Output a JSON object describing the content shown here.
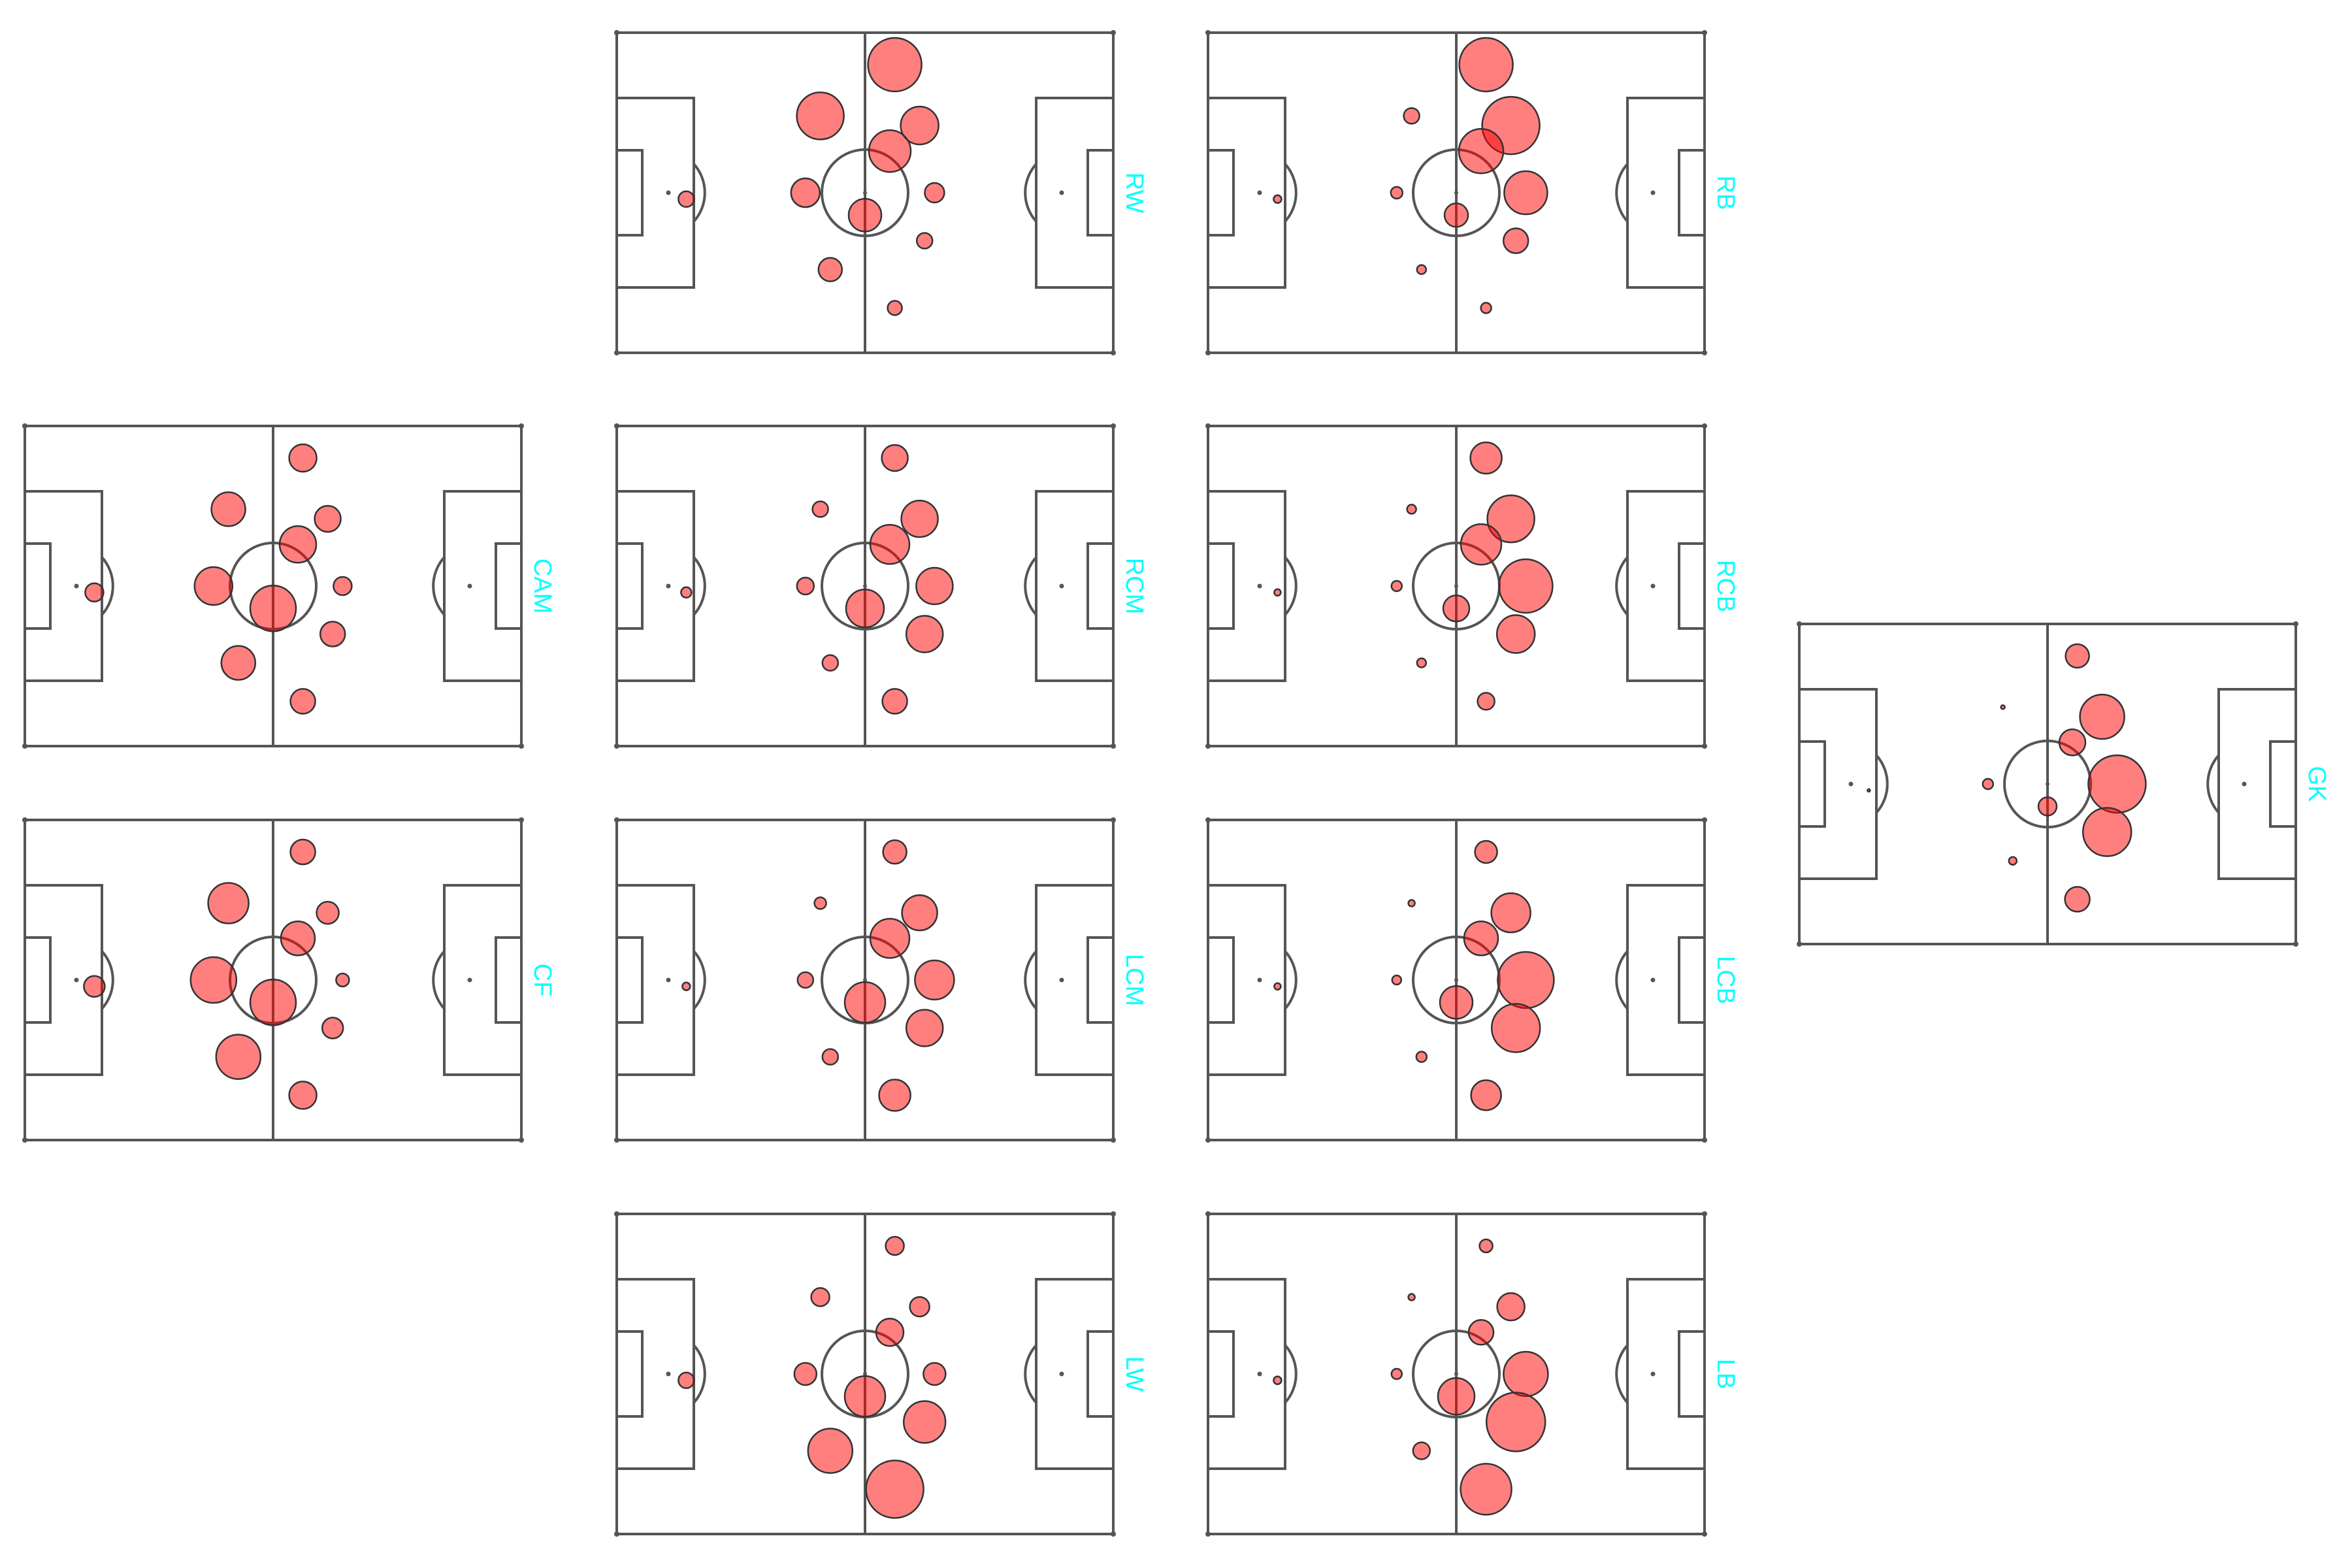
{
  "colors": {
    "line": "#555555",
    "bubble_fill": "#ff0000",
    "bubble_opacity": 0.5,
    "bubble_stroke": "#333333",
    "label": "#00ffff",
    "background": "#ffffff"
  },
  "pitches": [
    {
      "label": "RW",
      "bubbles": [
        [
          0.56,
          0.1,
          41
        ],
        [
          0.41,
          0.26,
          36
        ],
        [
          0.61,
          0.29,
          29
        ],
        [
          0.55,
          0.37,
          32
        ],
        [
          0.38,
          0.5,
          22
        ],
        [
          0.64,
          0.5,
          15
        ],
        [
          0.14,
          0.52,
          12
        ],
        [
          0.5,
          0.57,
          25
        ],
        [
          0.62,
          0.65,
          12
        ],
        [
          0.43,
          0.74,
          18
        ],
        [
          0.56,
          0.86,
          11
        ]
      ]
    },
    {
      "label": "RB",
      "bubbles": [
        [
          0.56,
          0.1,
          41
        ],
        [
          0.41,
          0.26,
          12
        ],
        [
          0.61,
          0.29,
          44
        ],
        [
          0.55,
          0.37,
          34
        ],
        [
          0.38,
          0.5,
          9
        ],
        [
          0.64,
          0.5,
          33
        ],
        [
          0.14,
          0.52,
          6
        ],
        [
          0.5,
          0.57,
          18
        ],
        [
          0.62,
          0.65,
          19
        ],
        [
          0.43,
          0.74,
          7
        ],
        [
          0.56,
          0.86,
          8
        ]
      ]
    },
    {
      "label": "CAM",
      "bubbles": [
        [
          0.56,
          0.1,
          21
        ],
        [
          0.41,
          0.26,
          26
        ],
        [
          0.61,
          0.29,
          20
        ],
        [
          0.55,
          0.37,
          28
        ],
        [
          0.38,
          0.5,
          29
        ],
        [
          0.64,
          0.5,
          14
        ],
        [
          0.14,
          0.52,
          14
        ],
        [
          0.5,
          0.57,
          35
        ],
        [
          0.62,
          0.65,
          19
        ],
        [
          0.43,
          0.74,
          26
        ],
        [
          0.56,
          0.86,
          19
        ]
      ]
    },
    {
      "label": "RCM",
      "bubbles": [
        [
          0.56,
          0.1,
          20
        ],
        [
          0.41,
          0.26,
          12
        ],
        [
          0.61,
          0.29,
          28
        ],
        [
          0.55,
          0.37,
          30
        ],
        [
          0.38,
          0.5,
          13
        ],
        [
          0.64,
          0.5,
          28
        ],
        [
          0.14,
          0.52,
          8
        ],
        [
          0.5,
          0.57,
          29
        ],
        [
          0.62,
          0.65,
          28
        ],
        [
          0.43,
          0.74,
          12
        ],
        [
          0.56,
          0.86,
          19
        ]
      ]
    },
    {
      "label": "RCB",
      "bubbles": [
        [
          0.56,
          0.1,
          24
        ],
        [
          0.41,
          0.26,
          7
        ],
        [
          0.61,
          0.29,
          36
        ],
        [
          0.55,
          0.37,
          31
        ],
        [
          0.38,
          0.5,
          8
        ],
        [
          0.64,
          0.5,
          41
        ],
        [
          0.14,
          0.52,
          5
        ],
        [
          0.5,
          0.57,
          20
        ],
        [
          0.62,
          0.65,
          29
        ],
        [
          0.43,
          0.74,
          7
        ],
        [
          0.56,
          0.86,
          13
        ]
      ]
    },
    {
      "label": "GK",
      "bubbles": [
        [
          0.56,
          0.1,
          18
        ],
        [
          0.41,
          0.26,
          3
        ],
        [
          0.61,
          0.29,
          34
        ],
        [
          0.55,
          0.37,
          20
        ],
        [
          0.38,
          0.5,
          8
        ],
        [
          0.64,
          0.5,
          44
        ],
        [
          0.14,
          0.52,
          2
        ],
        [
          0.5,
          0.57,
          14
        ],
        [
          0.62,
          0.65,
          37
        ],
        [
          0.43,
          0.74,
          6
        ],
        [
          0.56,
          0.86,
          19
        ]
      ]
    },
    {
      "label": "CF",
      "bubbles": [
        [
          0.56,
          0.1,
          19
        ],
        [
          0.41,
          0.26,
          31
        ],
        [
          0.61,
          0.29,
          17
        ],
        [
          0.55,
          0.37,
          26
        ],
        [
          0.38,
          0.5,
          35
        ],
        [
          0.64,
          0.5,
          10
        ],
        [
          0.14,
          0.52,
          16
        ],
        [
          0.5,
          0.57,
          35
        ],
        [
          0.62,
          0.65,
          16
        ],
        [
          0.43,
          0.74,
          34
        ],
        [
          0.56,
          0.86,
          21
        ]
      ]
    },
    {
      "label": "LCM",
      "bubbles": [
        [
          0.56,
          0.1,
          18
        ],
        [
          0.41,
          0.26,
          9
        ],
        [
          0.61,
          0.29,
          27
        ],
        [
          0.55,
          0.37,
          30
        ],
        [
          0.38,
          0.5,
          12
        ],
        [
          0.64,
          0.5,
          30
        ],
        [
          0.14,
          0.52,
          6
        ],
        [
          0.5,
          0.57,
          31
        ],
        [
          0.62,
          0.65,
          28
        ],
        [
          0.43,
          0.74,
          12
        ],
        [
          0.56,
          0.86,
          24
        ]
      ]
    },
    {
      "label": "LCB",
      "bubbles": [
        [
          0.56,
          0.1,
          17
        ],
        [
          0.41,
          0.26,
          5
        ],
        [
          0.61,
          0.29,
          30
        ],
        [
          0.55,
          0.37,
          26
        ],
        [
          0.38,
          0.5,
          7
        ],
        [
          0.64,
          0.5,
          43
        ],
        [
          0.14,
          0.52,
          5
        ],
        [
          0.5,
          0.57,
          25
        ],
        [
          0.62,
          0.65,
          37
        ],
        [
          0.43,
          0.74,
          8
        ],
        [
          0.56,
          0.86,
          23
        ]
      ]
    },
    {
      "label": "LW",
      "bubbles": [
        [
          0.56,
          0.1,
          14
        ],
        [
          0.41,
          0.26,
          14
        ],
        [
          0.61,
          0.29,
          15
        ],
        [
          0.55,
          0.37,
          21
        ],
        [
          0.38,
          0.5,
          17
        ],
        [
          0.64,
          0.5,
          17
        ],
        [
          0.14,
          0.52,
          12
        ],
        [
          0.5,
          0.57,
          31
        ],
        [
          0.62,
          0.65,
          32
        ],
        [
          0.43,
          0.74,
          34
        ],
        [
          0.56,
          0.86,
          44
        ]
      ]
    },
    {
      "label": "LB",
      "bubbles": [
        [
          0.56,
          0.1,
          10
        ],
        [
          0.41,
          0.26,
          5
        ],
        [
          0.61,
          0.29,
          21
        ],
        [
          0.55,
          0.37,
          19
        ],
        [
          0.38,
          0.5,
          8
        ],
        [
          0.64,
          0.5,
          34
        ],
        [
          0.14,
          0.52,
          6
        ],
        [
          0.5,
          0.57,
          28
        ],
        [
          0.62,
          0.65,
          45
        ],
        [
          0.43,
          0.74,
          13
        ],
        [
          0.56,
          0.86,
          39
        ]
      ]
    }
  ]
}
